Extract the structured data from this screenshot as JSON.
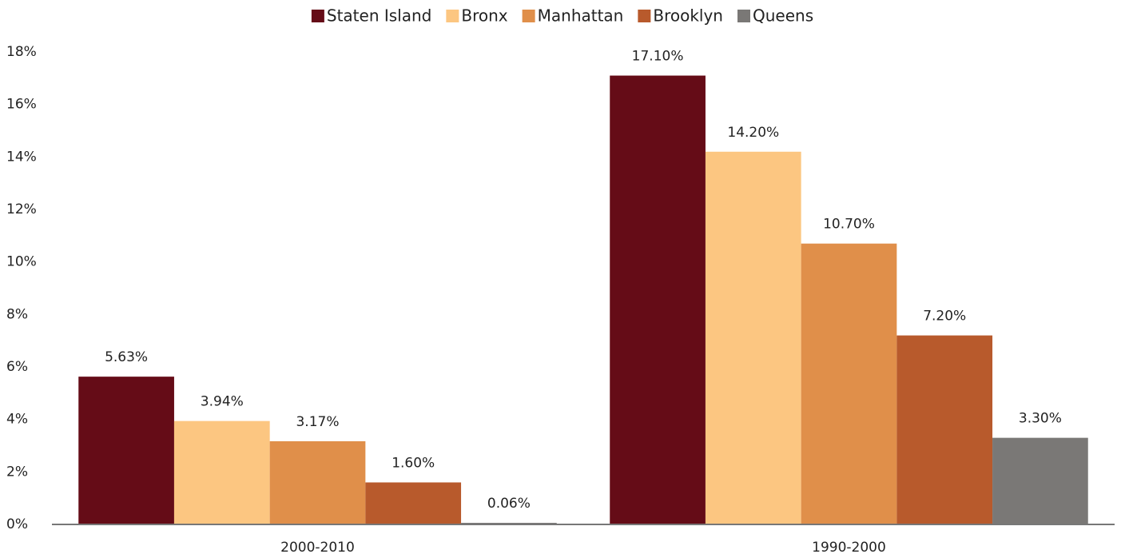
{
  "chart_data": {
    "type": "bar",
    "categories": [
      "2000-2010",
      "1990-2000"
    ],
    "series": [
      {
        "name": "Staten Island",
        "color": "#650c17",
        "values": [
          5.63,
          17.1
        ],
        "value_labels": [
          "5.63%",
          "17.10%"
        ]
      },
      {
        "name": "Bronx",
        "color": "#fcc681",
        "values": [
          3.94,
          14.2
        ],
        "value_labels": [
          "3.94%",
          "14.20%"
        ]
      },
      {
        "name": "Manhattan",
        "color": "#e08f4a",
        "values": [
          3.17,
          10.7
        ],
        "value_labels": [
          "3.17%",
          "10.70%"
        ]
      },
      {
        "name": "Brooklyn",
        "color": "#b85a2c",
        "values": [
          1.6,
          7.2
        ],
        "value_labels": [
          "1.60%",
          "7.20%"
        ]
      },
      {
        "name": "Queens",
        "color": "#7a7876",
        "values": [
          0.06,
          3.3
        ],
        "value_labels": [
          "0.06%",
          "3.30%"
        ]
      }
    ],
    "ylim": [
      0,
      18
    ],
    "yticks": [
      {
        "value": 0,
        "label": "0%"
      },
      {
        "value": 2,
        "label": "2%"
      },
      {
        "value": 4,
        "label": "4%"
      },
      {
        "value": 6,
        "label": "6%"
      },
      {
        "value": 8,
        "label": "8%"
      },
      {
        "value": 10,
        "label": "10%"
      },
      {
        "value": 12,
        "label": "12%"
      },
      {
        "value": 14,
        "label": "14%"
      },
      {
        "value": 16,
        "label": "16%"
      },
      {
        "value": 18,
        "label": "18%"
      }
    ],
    "grid": false,
    "legend": "top"
  }
}
